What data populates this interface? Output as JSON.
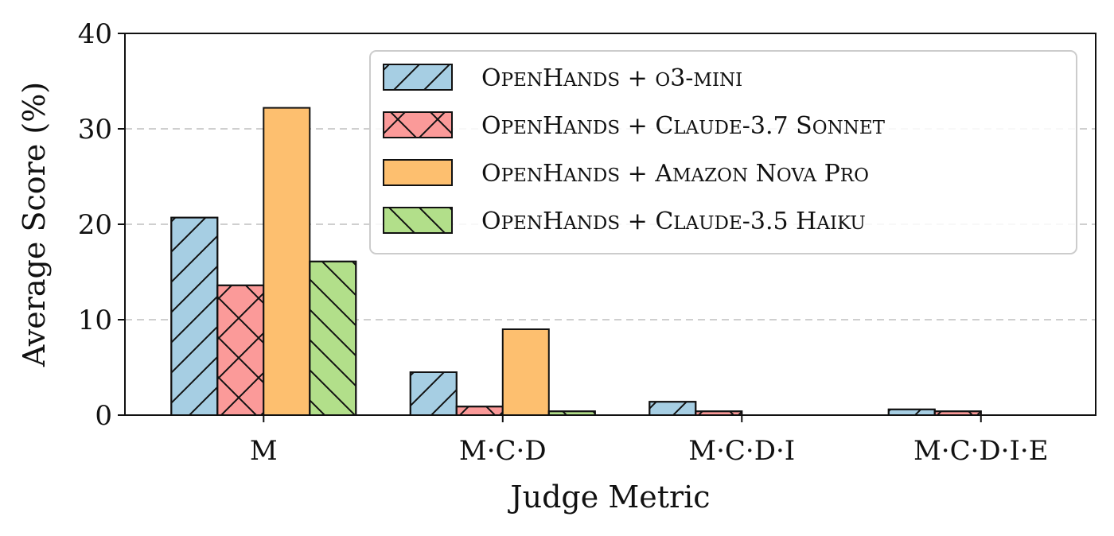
{
  "chart_data": {
    "type": "bar",
    "title": "",
    "xlabel": "Judge Metric",
    "ylabel": "Average Score (%)",
    "ylim": [
      0,
      40
    ],
    "yticks": [
      "0",
      "10",
      "20",
      "30",
      "40"
    ],
    "categories": [
      "M",
      "M·C·D",
      "M·C·D·I",
      "M·C·D·I·E"
    ],
    "grid": "horizontal dashed",
    "legend_position": "top-right",
    "series": [
      {
        "name": "OpenHands + o3-mini",
        "color": "#a6cee3",
        "hatch": "/",
        "values": [
          20.7,
          4.5,
          1.4,
          0.6
        ]
      },
      {
        "name": "OpenHands + Claude-3.7 Sonnet",
        "color": "#fb9a99",
        "hatch": "x",
        "values": [
          13.6,
          0.9,
          0.4,
          0.4
        ]
      },
      {
        "name": "OpenHands + Amazon Nova Pro",
        "color": "#fdbf6f",
        "hatch": "",
        "values": [
          32.2,
          9.0,
          0.0,
          0.0
        ]
      },
      {
        "name": "OpenHands + Claude-3.5 Haiku",
        "color": "#b2df8a",
        "hatch": "\\",
        "values": [
          16.1,
          0.4,
          0.0,
          0.0
        ]
      }
    ]
  }
}
